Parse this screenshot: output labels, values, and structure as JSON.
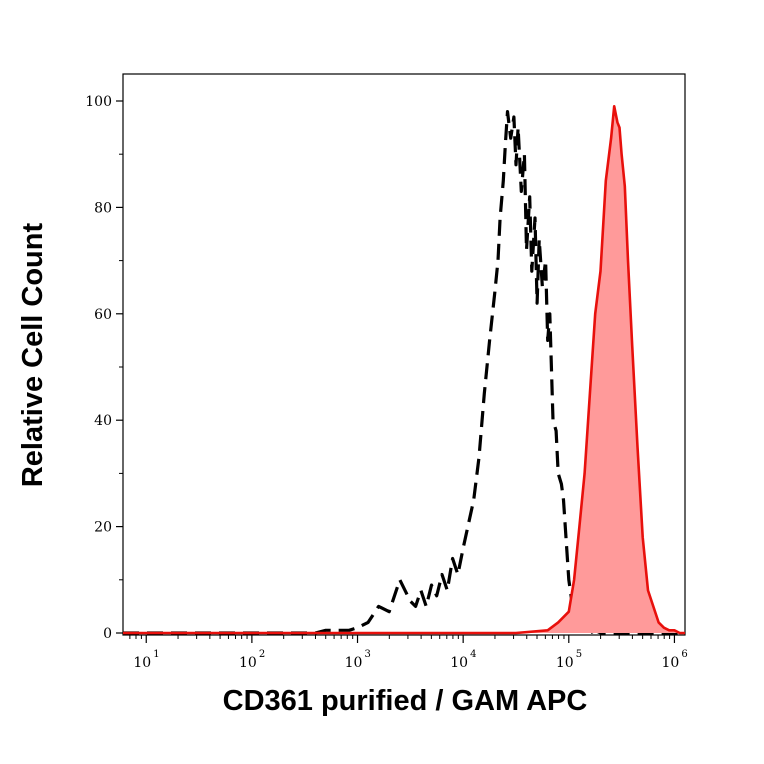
{
  "chart_data": {
    "type": "area",
    "xlabel": "CD361 purified / GAM APC",
    "ylabel": "Relative Cell Count",
    "xscale": "log",
    "xlim": [
      0.78,
      6.1
    ],
    "ylim": [
      0,
      100
    ],
    "grid": false,
    "legend": "none",
    "x_ticks": [
      {
        "base": "10",
        "exp": "1",
        "value": 1
      },
      {
        "base": "10",
        "exp": "2",
        "value": 2
      },
      {
        "base": "10",
        "exp": "3",
        "value": 3
      },
      {
        "base": "10",
        "exp": "4",
        "value": 4
      },
      {
        "base": "10",
        "exp": "5",
        "value": 5
      },
      {
        "base": "10",
        "exp": "6",
        "value": 6
      }
    ],
    "y_ticks": [
      {
        "label": "0",
        "value": 0
      },
      {
        "label": "20",
        "value": 20
      },
      {
        "label": "40",
        "value": 40
      },
      {
        "label": "60",
        "value": 60
      },
      {
        "label": "80",
        "value": 80
      },
      {
        "label": "100",
        "value": 100
      }
    ],
    "series": [
      {
        "style": "dashed",
        "color": "#000000",
        "filled": false,
        "x": [
          0.78,
          2.0,
          2.6,
          2.7,
          2.92,
          3.0,
          3.1,
          3.2,
          3.3,
          3.4,
          3.5,
          3.55,
          3.6,
          3.65,
          3.7,
          3.75,
          3.8,
          3.85,
          3.9,
          3.95,
          4.0,
          4.1,
          4.15,
          4.2,
          4.25,
          4.3,
          4.33,
          4.35,
          4.38,
          4.4,
          4.42,
          4.45,
          4.48,
          4.5,
          4.52,
          4.55,
          4.58,
          4.6,
          4.63,
          4.65,
          4.68,
          4.7,
          4.72,
          4.75,
          4.78,
          4.8,
          4.82,
          4.85,
          4.88,
          4.9,
          4.93,
          4.95,
          5.0,
          5.05,
          5.1,
          5.15,
          5.2,
          5.25,
          5.3,
          5.4,
          5.5,
          6.1
        ],
        "y": [
          0,
          0,
          0,
          0.5,
          0.5,
          1,
          2,
          5,
          4,
          10,
          6,
          5,
          8,
          5,
          9,
          7,
          11,
          8,
          14,
          11,
          16,
          25,
          33,
          45,
          55,
          64,
          70,
          78,
          85,
          92,
          98,
          93,
          97,
          88,
          95,
          83,
          90,
          72,
          82,
          68,
          78,
          62,
          74,
          65,
          70,
          55,
          60,
          40,
          38,
          30,
          28,
          25,
          10,
          3,
          1,
          0.5,
          0,
          0.5,
          0,
          0,
          0,
          0
        ]
      },
      {
        "style": "solid",
        "color": "#e8100c",
        "fill": "#ff9a9a",
        "filled": true,
        "x": [
          0.78,
          3.5,
          4.5,
          4.8,
          4.9,
          5.0,
          5.05,
          5.1,
          5.15,
          5.2,
          5.25,
          5.3,
          5.35,
          5.4,
          5.43,
          5.46,
          5.48,
          5.5,
          5.53,
          5.56,
          5.6,
          5.65,
          5.7,
          5.75,
          5.8,
          5.85,
          5.9,
          5.95,
          6.0,
          6.05,
          6.1
        ],
        "y": [
          0,
          0,
          0,
          0.5,
          2,
          4,
          10,
          20,
          30,
          45,
          60,
          68,
          85,
          93,
          99,
          96,
          95,
          90,
          84,
          70,
          54,
          35,
          18,
          8,
          5,
          2,
          1,
          0.5,
          0.5,
          0,
          0
        ]
      }
    ]
  }
}
